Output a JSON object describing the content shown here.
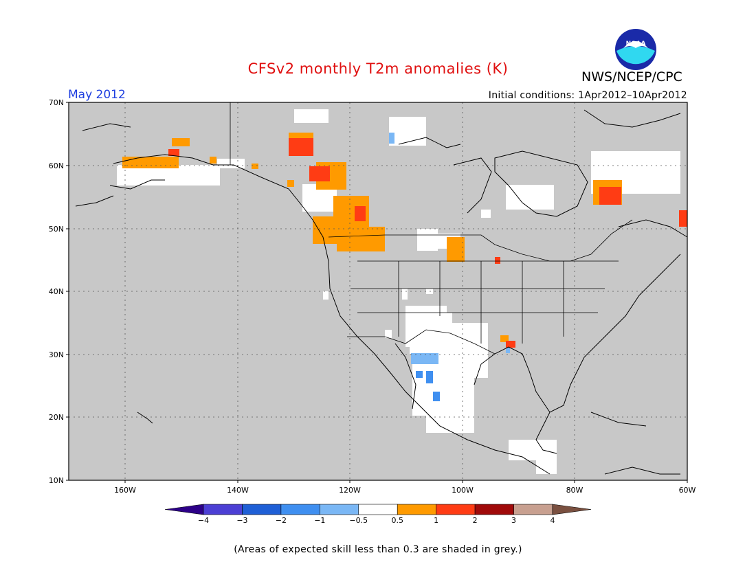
{
  "header": {
    "title": "CFSv2 monthly T2m anomalies (K)",
    "month": "May 2012",
    "initial_conditions": "Initial conditions: 1Apr2012–10Apr2012",
    "agency": "NWS/NCEP/CPC",
    "logo_text": "NOAA",
    "logo_icon": "noaa-logo-icon"
  },
  "map": {
    "lat_labels": [
      "70N",
      "60N",
      "50N",
      "40N",
      "30N",
      "20N",
      "10N"
    ],
    "lon_labels": [
      "160W",
      "140W",
      "120W",
      "100W",
      "80W",
      "60W"
    ],
    "lat_range": [
      10,
      70
    ],
    "lon_range": [
      -170,
      -60
    ],
    "background_color": "#c8c8c8",
    "gridlines": true
  },
  "colorbar": {
    "labels": [
      "−4",
      "−3",
      "−2",
      "−1",
      "−0.5",
      "0.5",
      "1",
      "2",
      "3",
      "4"
    ],
    "colors": [
      "#2d0088",
      "#4c3fd4",
      "#1f5fd6",
      "#3f8ff0",
      "#7ab7f5",
      "#ffffff",
      "#ff9a00",
      "#ff3c14",
      "#a00a0a",
      "#c8a090",
      "#7a5040"
    ]
  },
  "note": "(Areas of expected skill less than 0.3 are shaded in grey.)"
}
